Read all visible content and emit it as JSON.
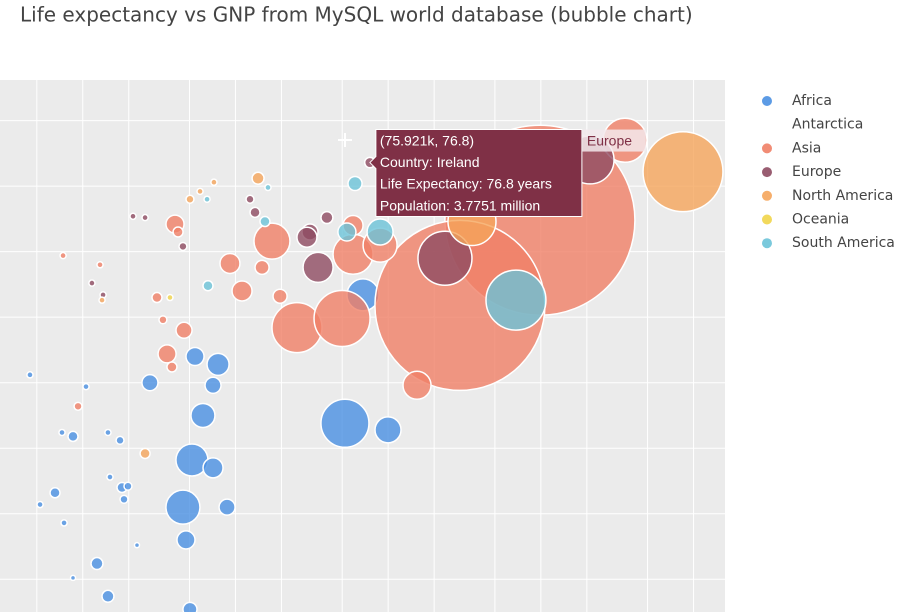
{
  "chart_data": {
    "type": "scatter",
    "title": "Life expectancy vs GNP from MySQL world database (bubble chart)",
    "xscale": "log",
    "xlim": [
      287,
      16070000
    ],
    "ylim": [
      42.5,
      83.1
    ],
    "xticks": [
      500,
      1000,
      2000,
      5000,
      10000,
      20000,
      50000,
      100000,
      200000,
      500000,
      1000000,
      2000000,
      5000000,
      10000000
    ],
    "yticks": [
      45,
      50,
      55,
      60,
      65,
      70,
      75,
      80
    ],
    "grid": true,
    "legend": "right",
    "series": [
      {
        "name": "Africa",
        "color": "#4a90e2",
        "x": [
          451,
          658,
          525,
          754,
          731,
          863,
          1050,
          1462,
          1754,
          1507,
          1807,
          1977,
          1862,
          1239,
          1462,
          863,
          2265,
          2754,
          5433,
          7691,
          7129,
          6124,
          5188,
          7129,
          4529,
          8810,
          4742,
          5035,
          52120,
          99770,
          68390
        ],
        "values": [
          60.6,
          51.6,
          50.7,
          49.3,
          56.2,
          55.9,
          59.7,
          56.2,
          55.6,
          52.8,
          52.0,
          52.1,
          51.1,
          46.2,
          43.7,
          45.1,
          47.6,
          60.0,
          62.0,
          61.4,
          59.8,
          57.5,
          54.1,
          53.5,
          50.5,
          50.5,
          48.0,
          42.7,
          56.9,
          56.4,
          66.7
        ],
        "sizes": [
          1.3,
          3.5,
          1.3,
          1.3,
          1.3,
          3.5,
          1.3,
          1.3,
          2.2,
          1.3,
          3.5,
          2.2,
          2.2,
          5.0,
          5.0,
          0.6,
          0.6,
          9.0,
          11.4,
          17.0,
          9.0,
          20.2,
          35.9,
          14.0,
          40.5,
          9.0,
          11.4,
          6.9,
          80.8,
          23.7,
          35.9
        ]
      },
      {
        "name": "Antarctica",
        "x": [],
        "values": [],
        "sizes": []
      },
      {
        "name": "Asia",
        "color": "#f07f66",
        "x": [
          986000,
          295100,
          3556000,
          1297,
          743,
          931,
          3062,
          3350,
          4603,
          3565,
          3837,
          4018,
          4207,
          9204,
          11040,
          14930,
          17340,
          19590,
          25290,
          49890,
          58880,
          88510,
          154500,
          196800,
          58880
        ],
        "values": [
          72.4,
          65.9,
          78.5,
          69.0,
          69.7,
          58.2,
          66.5,
          64.8,
          64.0,
          62.2,
          61.2,
          72.1,
          71.5,
          69.1,
          67.0,
          68.8,
          70.8,
          66.6,
          64.2,
          64.9,
          69.8,
          70.5,
          59.8,
          74.9,
          72.0
        ],
        "sizes": [
          1266,
          1013,
          67.9,
          1.3,
          1.3,
          2.2,
          3.5,
          2.2,
          9.0,
          11.4,
          3.5,
          11.4,
          3.5,
          14.0,
          14.0,
          6.9,
          45.4,
          6.9,
          87.7,
          110,
          56.1,
          40.5,
          27.5,
          45.4,
          14.0
        ]
      },
      {
        "name": "Europe",
        "color": "#8e4b62",
        "x": [
          2099000,
          235500,
          1148,
          1358,
          2133,
          2559,
          4529,
          13430,
          12450,
          30760,
          34750,
          39720,
          29380,
          75921
        ],
        "values": [
          77.0,
          69.5,
          67.6,
          66.7,
          72.7,
          72.6,
          70.4,
          73.0,
          74.0,
          71.5,
          68.8,
          72.6,
          71.1,
          76.8
        ],
        "sizes": [
          80.8,
          102.3,
          1.3,
          1.3,
          1.3,
          1.3,
          2.2,
          3.5,
          2.2,
          9.0,
          31.6,
          5.0,
          14.0,
          3.7751
        ]
      },
      {
        "name": "North America",
        "color": "#f5a55b",
        "x": [
          8531000,
          354000,
          14060,
          7228,
          5861,
          2559,
          1337,
          5035
        ],
        "values": [
          76.1,
          72.3,
          75.6,
          75.3,
          74.6,
          54.6,
          66.3,
          74.0
        ],
        "sizes": [
          224,
          80.8,
          5.0,
          1.3,
          1.3,
          3.5,
          1.3,
          2.2
        ]
      },
      {
        "name": "Oceania",
        "color": "#f1d54a",
        "x": [
          3724
        ],
        "values": [
          66.5
        ],
        "sizes": [
          1.3
        ]
      },
      {
        "name": "South America",
        "color": "#6cc3d8",
        "x": [
          687100,
          88510,
          53700,
          60670,
          6607,
          15600,
          6516,
          16330
        ],
        "values": [
          66.3,
          71.5,
          71.5,
          75.2,
          67.4,
          72.3,
          74.0,
          74.9
        ],
        "sizes": [
          126,
          23.7,
          11.4,
          6.9,
          3.5,
          3.5,
          1.3,
          1.3
        ]
      }
    ],
    "hover": {
      "lines": [
        "(75.921k, 76.8)",
        "Country: Ireland",
        "Life Expectancy: 76.8 years",
        "Population: 3.7751 million"
      ],
      "name": "Europe"
    }
  }
}
